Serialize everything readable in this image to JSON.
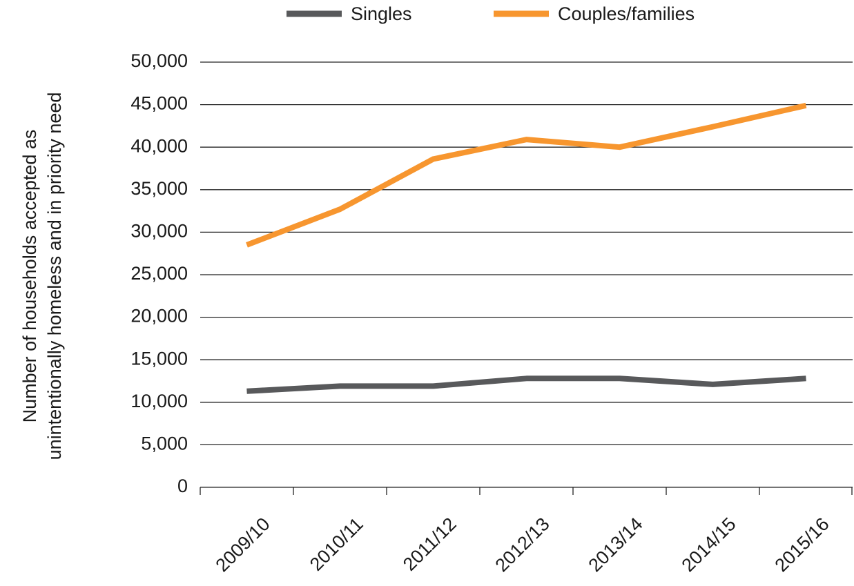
{
  "chart_data": {
    "type": "line",
    "ylabel": [
      "Number of households accepted as",
      "unintentionally homeless and in priority need"
    ],
    "categories": [
      "2009/10",
      "2010/11",
      "2011/12",
      "2012/13",
      "2013/14",
      "2014/15",
      "2015/16"
    ],
    "series": [
      {
        "name": "Singles",
        "color": "#58595b",
        "values": [
          11300,
          11900,
          11900,
          12800,
          12800,
          12100,
          12800
        ]
      },
      {
        "name": "Couples/families",
        "color": "#f7962f",
        "values": [
          28500,
          32700,
          38600,
          40900,
          40000,
          42400,
          44900
        ]
      }
    ],
    "ylim": [
      0,
      50000
    ],
    "yticks": [
      0,
      {
        "value": 5000,
        "label": "5,000"
      },
      {
        "value": 10000,
        "label": "10,000"
      },
      {
        "value": 15000,
        "label": "15,000"
      },
      {
        "value": 20000,
        "label": "20,000"
      },
      {
        "value": 25000,
        "label": "25,000"
      },
      {
        "value": 30000,
        "label": "30,000"
      },
      {
        "value": 35000,
        "label": "35,000"
      },
      {
        "value": 40000,
        "label": "40,000"
      },
      {
        "value": 45000,
        "label": "45,000"
      },
      {
        "value": 50000,
        "label": "50,000"
      }
    ],
    "grid": true,
    "legend": "top"
  }
}
